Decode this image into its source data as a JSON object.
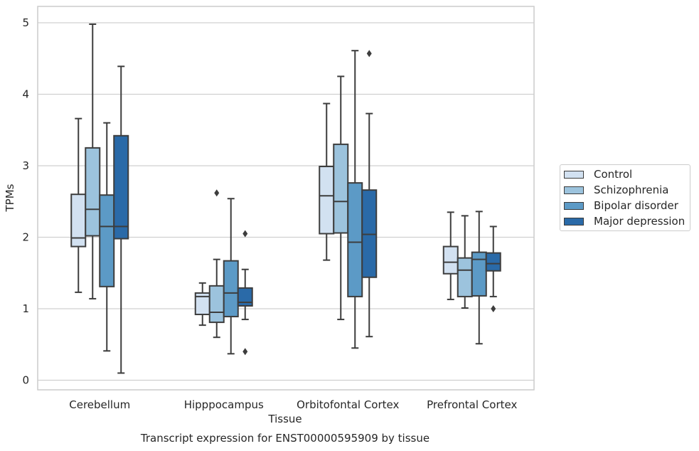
{
  "chart_data": {
    "type": "box",
    "title": "Transcript expression for ENST00000595909 by tissue",
    "xlabel": "Tissue",
    "ylabel": "TPMs",
    "ylim": [
      -0.12,
      5.25
    ],
    "yticks": [
      0,
      1,
      2,
      3,
      4,
      5
    ],
    "grid": "horizontal",
    "legend_position": "right",
    "categories": [
      "Cerebellum",
      "Hipppocampus",
      "Orbitofontal Cortex",
      "Prefrontal Cortex"
    ],
    "series": [
      {
        "name": "Control",
        "color": "#d2e1f1",
        "boxes": [
          {
            "whisker_low": 1.23,
            "q1": 1.87,
            "median": 1.99,
            "q3": 2.6,
            "whisker_high": 3.66,
            "outliers": []
          },
          {
            "whisker_low": 0.77,
            "q1": 0.92,
            "median": 1.17,
            "q3": 1.22,
            "whisker_high": 1.36,
            "outliers": []
          },
          {
            "whisker_low": 1.68,
            "q1": 2.05,
            "median": 2.58,
            "q3": 2.99,
            "whisker_high": 3.87,
            "outliers": []
          },
          {
            "whisker_low": 1.13,
            "q1": 1.49,
            "median": 1.65,
            "q3": 1.87,
            "whisker_high": 2.35,
            "outliers": []
          }
        ]
      },
      {
        "name": "Schizophrenia",
        "color": "#9cc3dd",
        "boxes": [
          {
            "whisker_low": 1.14,
            "q1": 2.02,
            "median": 2.39,
            "q3": 3.25,
            "whisker_high": 4.98,
            "outliers": []
          },
          {
            "whisker_low": 0.6,
            "q1": 0.81,
            "median": 0.95,
            "q3": 1.32,
            "whisker_high": 1.69,
            "outliers": [
              2.62
            ]
          },
          {
            "whisker_low": 0.85,
            "q1": 2.06,
            "median": 2.5,
            "q3": 3.3,
            "whisker_high": 4.25,
            "outliers": []
          },
          {
            "whisker_low": 1.01,
            "q1": 1.17,
            "median": 1.54,
            "q3": 1.71,
            "whisker_high": 2.3,
            "outliers": []
          }
        ]
      },
      {
        "name": "Bipolar disorder",
        "color": "#5c9ac6",
        "boxes": [
          {
            "whisker_low": 0.41,
            "q1": 1.31,
            "median": 2.15,
            "q3": 2.59,
            "whisker_high": 3.6,
            "outliers": []
          },
          {
            "whisker_low": 0.37,
            "q1": 0.89,
            "median": 1.22,
            "q3": 1.67,
            "whisker_high": 2.54,
            "outliers": []
          },
          {
            "whisker_low": 0.45,
            "q1": 1.17,
            "median": 1.93,
            "q3": 2.76,
            "whisker_high": 4.61,
            "outliers": []
          },
          {
            "whisker_low": 0.51,
            "q1": 1.18,
            "median": 1.69,
            "q3": 1.79,
            "whisker_high": 2.36,
            "outliers": []
          }
        ]
      },
      {
        "name": "Major depression",
        "color": "#2a6aa8",
        "boxes": [
          {
            "whisker_low": 0.1,
            "q1": 1.98,
            "median": 2.15,
            "q3": 3.42,
            "whisker_high": 4.39,
            "outliers": []
          },
          {
            "whisker_low": 0.85,
            "q1": 1.04,
            "median": 1.09,
            "q3": 1.29,
            "whisker_high": 1.55,
            "outliers": [
              2.05,
              0.4
            ]
          },
          {
            "whisker_low": 0.61,
            "q1": 1.44,
            "median": 2.04,
            "q3": 2.66,
            "whisker_high": 3.73,
            "outliers": [
              4.57
            ]
          },
          {
            "whisker_low": 1.17,
            "q1": 1.53,
            "median": 1.63,
            "q3": 1.78,
            "whisker_high": 2.15,
            "outliers": [
              1.0
            ]
          }
        ]
      }
    ]
  }
}
